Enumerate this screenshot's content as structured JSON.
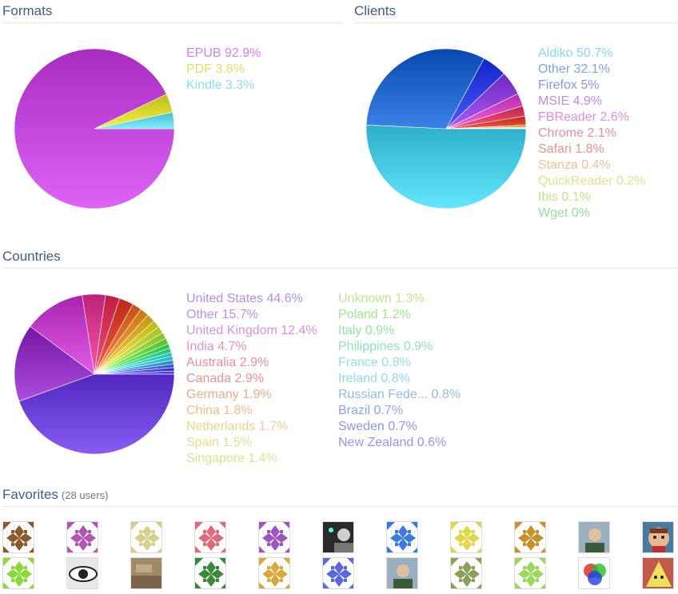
{
  "sections": {
    "formats": "Formats",
    "clients": "Clients",
    "countries": "Countries",
    "favorites": "Favorites",
    "favorites_sub": "(28 users)"
  },
  "chart_data": [
    {
      "type": "pie",
      "name": "formats",
      "slices": [
        {
          "label": "EPUB",
          "value": 92.9,
          "text": "EPUB 92.9%",
          "color": "#c045d8",
          "label_color": "#d47fe3"
        },
        {
          "label": "PDF",
          "value": 3.8,
          "text": "PDF 3.8%",
          "color": "#d6d32a",
          "label_color": "#e0dc6a"
        },
        {
          "label": "Kindle",
          "value": 3.3,
          "text": "Kindle 3.3%",
          "color": "#5fd2e4",
          "label_color": "#8de0ea"
        }
      ]
    },
    {
      "type": "pie",
      "name": "clients",
      "slices": [
        {
          "label": "Aldiko",
          "value": 50.7,
          "text": "Aldiko 50.7%",
          "color": "#45c9e2",
          "label_color": "#86d9ea"
        },
        {
          "label": "Other",
          "value": 32.1,
          "text": "Other 32.1%",
          "color": "#1f63c9",
          "label_color": "#7fa6e0"
        },
        {
          "label": "Firefox",
          "value": 5,
          "text": "Firefox 5%",
          "color": "#2a3ee0",
          "label_color": "#8d94e8"
        },
        {
          "label": "MSIE",
          "value": 4.9,
          "text": "MSIE 4.9%",
          "color": "#8a3fd8",
          "label_color": "#bb8ce6"
        },
        {
          "label": "FBReader",
          "value": 2.6,
          "text": "FBReader 2.6%",
          "color": "#d045c4",
          "label_color": "#e08ed9"
        },
        {
          "label": "Chrome",
          "value": 2.1,
          "text": "Chrome 2.1%",
          "color": "#d93a5e",
          "label_color": "#e48ea6"
        },
        {
          "label": "Safari",
          "value": 1.8,
          "text": "Safari 1.8%",
          "color": "#d63c2a",
          "label_color": "#e6938a"
        },
        {
          "label": "Stanza",
          "value": 0.4,
          "text": "Stanza 0.4%",
          "color": "#e09a3a",
          "label_color": "#ebc08e"
        },
        {
          "label": "QuickReader",
          "value": 0.2,
          "text": "QuickReader 0.2%",
          "color": "#d8d440",
          "label_color": "#e3e08a"
        },
        {
          "label": "Ibis",
          "value": 0.1,
          "text": "Ibis 0.1%",
          "color": "#9ad84a",
          "label_color": "#bfe28e"
        },
        {
          "label": "Wget",
          "value": 0,
          "text": "Wget 0%",
          "color": "#5ad86a",
          "label_color": "#93e0a0"
        }
      ]
    },
    {
      "type": "pie",
      "name": "countries",
      "slices": [
        {
          "label": "United States",
          "value": 44.6,
          "text": "United States 44.6%",
          "color": "#6a3fd8",
          "label_color": "#b48ee8"
        },
        {
          "label": "Other",
          "value": 15.7,
          "text": "Other 15.7%",
          "color": "#8e2fc0",
          "label_color": "#c28fe0"
        },
        {
          "label": "United Kingdom",
          "value": 12.4,
          "text": "United Kingdom 12.4%",
          "color": "#c23ec8",
          "label_color": "#d88fe0"
        },
        {
          "label": "India",
          "value": 4.7,
          "text": "India 4.7%",
          "color": "#d83a8e",
          "label_color": "#e38ec0"
        },
        {
          "label": "Australia",
          "value": 2.9,
          "text": "Australia 2.9%",
          "color": "#d8355a",
          "label_color": "#e48ea4"
        },
        {
          "label": "Canada",
          "value": 2.9,
          "text": "Canada 2.9%",
          "color": "#d8402e",
          "label_color": "#e6948c"
        },
        {
          "label": "Germany",
          "value": 1.9,
          "text": "Germany 1.9%",
          "color": "#e06a2a",
          "label_color": "#ebab88"
        },
        {
          "label": "China",
          "value": 1.8,
          "text": "China 1.8%",
          "color": "#e0902a",
          "label_color": "#ebbf88"
        },
        {
          "label": "Netherlands",
          "value": 1.7,
          "text": "Netherlands 1.7%",
          "color": "#e0b02a",
          "label_color": "#ecd08a"
        },
        {
          "label": "Spain",
          "value": 1.5,
          "text": "Spain 1.5%",
          "color": "#d8d030",
          "label_color": "#e4e08a"
        },
        {
          "label": "Singapore",
          "value": 1.4,
          "text": "Singapore 1.4%",
          "color": "#c0d83a",
          "label_color": "#d8e48e"
        },
        {
          "label": "Unknown",
          "value": 1.3,
          "text": "Unknown 1.3%",
          "color": "#9ad840",
          "label_color": "#c0e48e"
        },
        {
          "label": "Poland",
          "value": 1.2,
          "text": "Poland 1.2%",
          "color": "#6ad83e",
          "label_color": "#a4e48e"
        },
        {
          "label": "Italy",
          "value": 0.9,
          "text": "Italy 0.9%",
          "color": "#40d850",
          "label_color": "#90e49a"
        },
        {
          "label": "Philippines",
          "value": 0.9,
          "text": "Philippines 0.9%",
          "color": "#3ad88a",
          "label_color": "#8ee4b8"
        },
        {
          "label": "France",
          "value": 0.8,
          "text": "France 0.8%",
          "color": "#3ad8c0",
          "label_color": "#8ee4d8"
        },
        {
          "label": "Ireland",
          "value": 0.8,
          "text": "Ireland 0.8%",
          "color": "#3ac8e0",
          "label_color": "#8ed8ea"
        },
        {
          "label": "Russian Fede...",
          "value": 0.8,
          "text": "Russian Fede... 0.8%",
          "color": "#3a98e0",
          "label_color": "#8ebce8"
        },
        {
          "label": "Brazil",
          "value": 0.7,
          "text": "Brazil 0.7%",
          "color": "#3a68e0",
          "label_color": "#8ea4e8"
        },
        {
          "label": "Sweden",
          "value": 0.7,
          "text": "Sweden 0.7%",
          "color": "#3a40e0",
          "label_color": "#9094e8"
        },
        {
          "label": "New Zealand",
          "value": 0.6,
          "text": "New Zealand 0.6%",
          "color": "#5a3ae0",
          "label_color": "#a090e8"
        }
      ]
    }
  ],
  "favorites": {
    "rows": [
      [
        {
          "kind": "pattern",
          "color": "#8a5a2a"
        },
        {
          "kind": "pattern",
          "color": "#b455b4"
        },
        {
          "kind": "pattern",
          "color": "#d8d08a"
        },
        {
          "kind": "pattern",
          "color": "#e06a7a"
        },
        {
          "kind": "pattern",
          "color": "#9a55c0"
        },
        {
          "kind": "photo",
          "icon": "person-dark-icon"
        },
        {
          "kind": "pattern",
          "color": "#3a7ae0"
        },
        {
          "kind": "pattern",
          "color": "#e0d84a"
        },
        {
          "kind": "pattern",
          "color": "#c8902a"
        },
        {
          "kind": "photo",
          "icon": "person-icon"
        },
        {
          "kind": "photo",
          "icon": "cartoon-face-icon"
        }
      ],
      [
        {
          "kind": "pattern",
          "color": "#8ad83a"
        },
        {
          "kind": "photo",
          "icon": "eye-icon"
        },
        {
          "kind": "photo",
          "icon": "sepia-photo-icon"
        },
        {
          "kind": "pattern",
          "color": "#3a8a3a"
        },
        {
          "kind": "pattern",
          "color": "#d8a83a"
        },
        {
          "kind": "pattern",
          "color": "#5a6ad8"
        },
        {
          "kind": "photo",
          "icon": "person-icon"
        },
        {
          "kind": "pattern",
          "color": "#8aa05a"
        },
        {
          "kind": "pattern",
          "color": "#9ad85a"
        },
        {
          "kind": "photo",
          "icon": "color-circles-icon"
        },
        {
          "kind": "photo",
          "icon": "triangle-face-icon"
        }
      ]
    ]
  }
}
